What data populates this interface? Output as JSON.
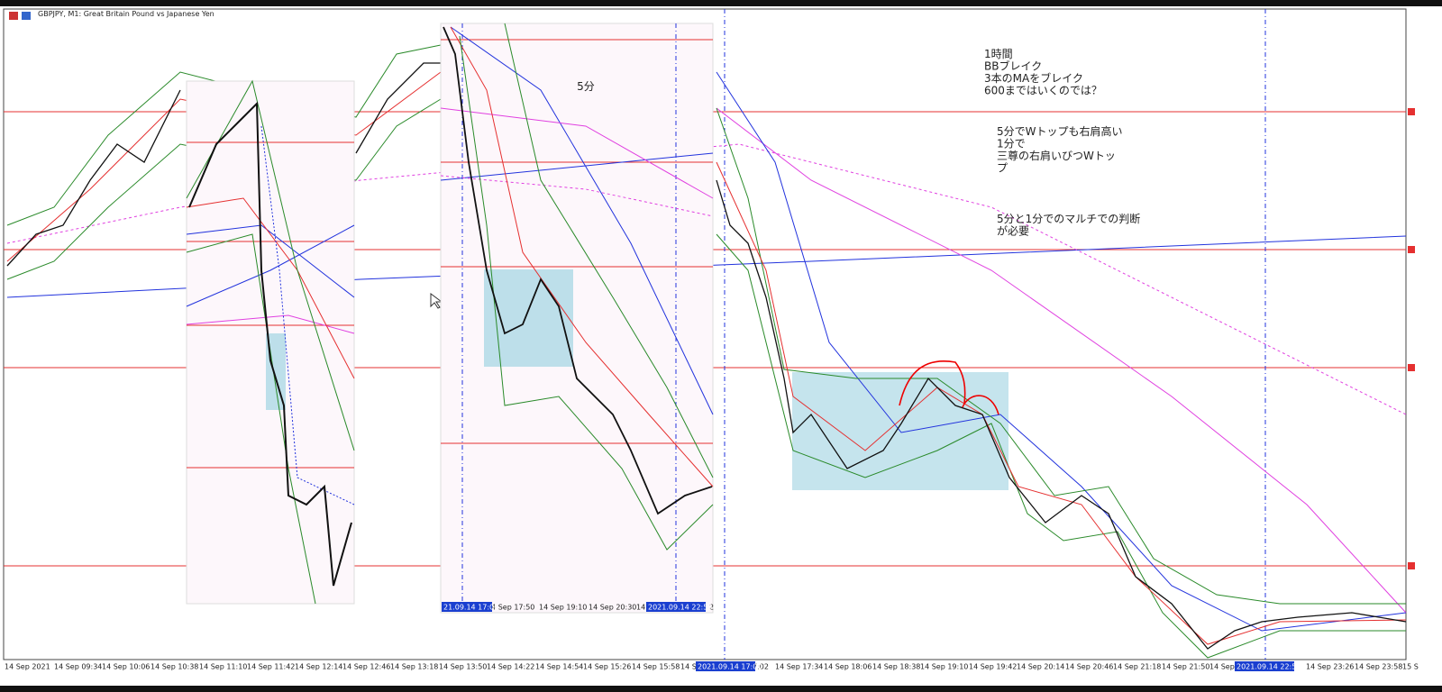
{
  "header": {
    "title": "GBPJPY, M1:  Great Britain Pound vs Japanese Yen"
  },
  "x_axis": {
    "labels": [
      "14 Sep 2021",
      "14 Sep 09:34",
      "14 Sep 10:06",
      "14 Sep 10:38",
      "14 Sep 11:10",
      "14 Sep 11:42",
      "14 Sep 12:14",
      "14 Sep 12:46",
      "14 Sep 13:18",
      "14 Sep 13:50",
      "14 Sep 14:22",
      "14 Sep 14:54",
      "14 Sep 15:26",
      "14 Sep 15:58",
      "14 Sep 1",
      "7:02",
      "14 Sep 17:34",
      "14 Sep 18:06",
      "14 Sep 18:38",
      "14 Sep 19:10",
      "14 Sep 19:42",
      "14 Sep 20:14",
      "14 Sep 20:46",
      "14 Sep 21:18",
      "14 Sep 21:50",
      "14 Sep 2",
      "14 Sep 23:26",
      "14 Sep 23:58",
      "15 S"
    ],
    "markers": [
      "2021.09.14 17:00",
      "2021.09.14 22:53"
    ]
  },
  "inset": {
    "title": "5分",
    "labels": [
      "14 Sep 17:50",
      "14 Sep 19:10",
      "14 Sep 20:30",
      "14",
      "2"
    ],
    "markers": [
      "21.09.14 17:00",
      "2021.09.14 22:53"
    ]
  },
  "notes": [
    [
      "1時間",
      "BBブレイク",
      "3本のMAをブレイク",
      "600まではいくのでは？"
    ],
    [
      "5分でWトップも右肩高い",
      "1分で",
      "三尊の右肩いびつWトッ",
      "プ"
    ],
    [
      "5分と1分でのマルチでの判断",
      "が必要"
    ]
  ]
}
